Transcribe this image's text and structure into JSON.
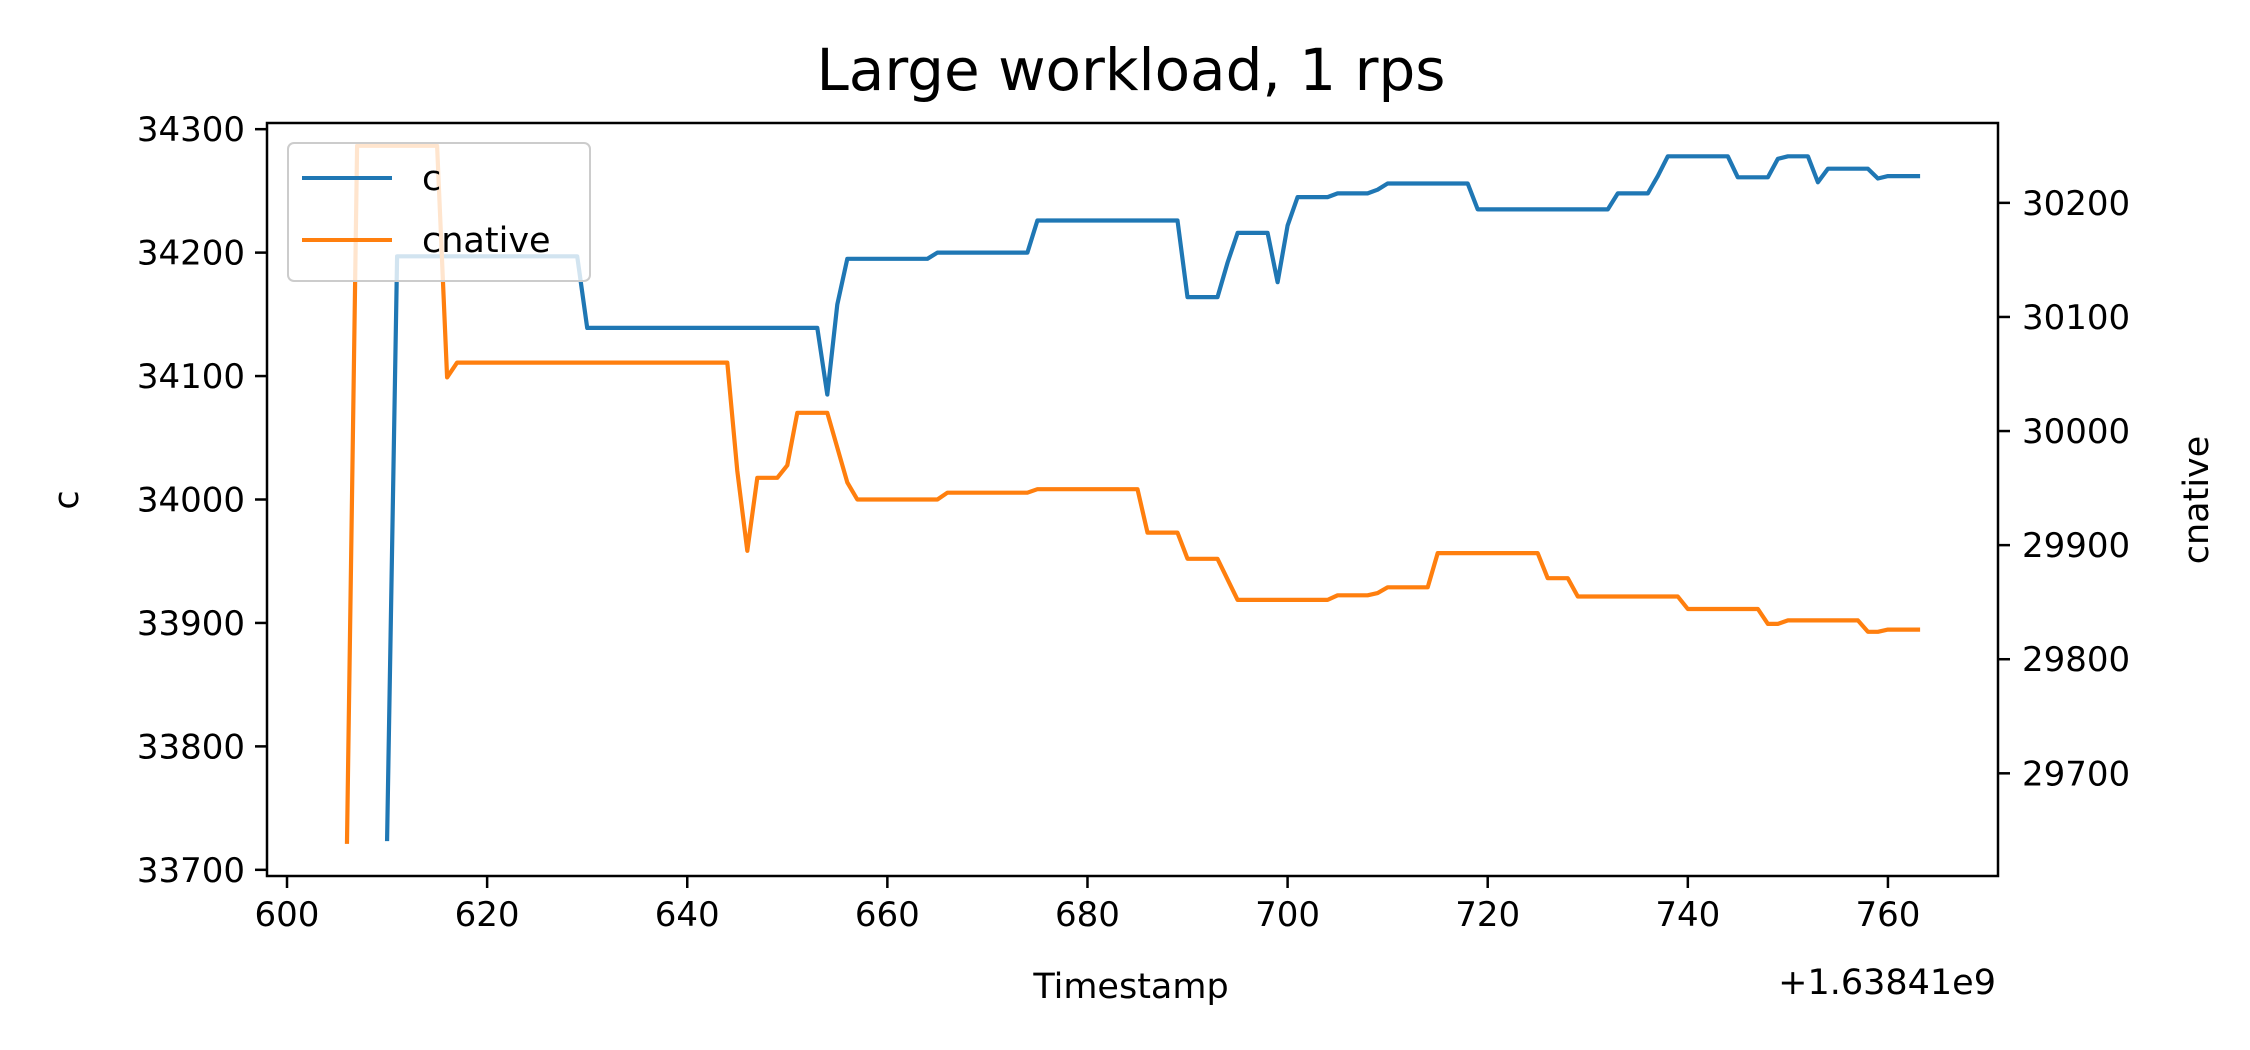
{
  "chart_data": {
    "type": "line",
    "title": "Large workload, 1 rps",
    "xlabel": "Timestamp",
    "x_offset_label": "+1.63841e9",
    "ylabel_left": "c",
    "ylabel_right": "cnative",
    "xlim": [
      598,
      771
    ],
    "ylim_left": [
      33695,
      34305
    ],
    "ylim_right": [
      29610,
      30270
    ],
    "xticks": [
      600,
      620,
      640,
      660,
      680,
      700,
      720,
      740,
      760
    ],
    "yticks_left": [
      33700,
      33800,
      33900,
      34000,
      34100,
      34200,
      34300
    ],
    "yticks_right": [
      29700,
      29800,
      29900,
      30000,
      30100,
      30200
    ],
    "legend": {
      "position": "upper-left"
    },
    "grid": false,
    "series": [
      {
        "name": "c",
        "axis": "left",
        "color": "#1f77b4",
        "points": [
          [
            610,
            33725
          ],
          [
            611,
            34197
          ],
          [
            629,
            34197
          ],
          [
            630,
            34139
          ],
          [
            653,
            34139
          ],
          [
            654,
            34085
          ],
          [
            655,
            34158
          ],
          [
            656,
            34195
          ],
          [
            664,
            34195
          ],
          [
            665,
            34200
          ],
          [
            674,
            34200
          ],
          [
            675,
            34226
          ],
          [
            689,
            34226
          ],
          [
            690,
            34164
          ],
          [
            693,
            34164
          ],
          [
            694,
            34192
          ],
          [
            695,
            34216
          ],
          [
            698,
            34216
          ],
          [
            699,
            34176
          ],
          [
            700,
            34222
          ],
          [
            701,
            34245
          ],
          [
            704,
            34245
          ],
          [
            705,
            34248
          ],
          [
            708,
            34248
          ],
          [
            709,
            34251
          ],
          [
            710,
            34256
          ],
          [
            718,
            34256
          ],
          [
            719,
            34235
          ],
          [
            732,
            34235
          ],
          [
            733,
            34248
          ],
          [
            736,
            34248
          ],
          [
            737,
            34262
          ],
          [
            738,
            34278
          ],
          [
            744,
            34278
          ],
          [
            745,
            34261
          ],
          [
            748,
            34261
          ],
          [
            749,
            34276
          ],
          [
            750,
            34278
          ],
          [
            752,
            34278
          ],
          [
            753,
            34257
          ],
          [
            754,
            34268
          ],
          [
            758,
            34268
          ],
          [
            759,
            34260
          ],
          [
            760,
            34262
          ],
          [
            763,
            34262
          ]
        ]
      },
      {
        "name": "cnative",
        "axis": "right",
        "color": "#ff7f0e",
        "points": [
          [
            606,
            29640
          ],
          [
            607,
            30250
          ],
          [
            615,
            30250
          ],
          [
            616,
            30047
          ],
          [
            617,
            30060
          ],
          [
            644,
            30060
          ],
          [
            645,
            29965
          ],
          [
            646,
            29895
          ],
          [
            647,
            29959
          ],
          [
            649,
            29959
          ],
          [
            650,
            29970
          ],
          [
            651,
            30016
          ],
          [
            654,
            30016
          ],
          [
            656,
            29955
          ],
          [
            657,
            29940
          ],
          [
            665,
            29940
          ],
          [
            666,
            29946
          ],
          [
            674,
            29946
          ],
          [
            675,
            29949
          ],
          [
            685,
            29949
          ],
          [
            686,
            29911
          ],
          [
            689,
            29911
          ],
          [
            690,
            29888
          ],
          [
            693,
            29888
          ],
          [
            695,
            29852
          ],
          [
            704,
            29852
          ],
          [
            705,
            29856
          ],
          [
            708,
            29856
          ],
          [
            709,
            29858
          ],
          [
            710,
            29863
          ],
          [
            714,
            29863
          ],
          [
            715,
            29893
          ],
          [
            725,
            29893
          ],
          [
            726,
            29871
          ],
          [
            728,
            29871
          ],
          [
            729,
            29855
          ],
          [
            739,
            29855
          ],
          [
            740,
            29844
          ],
          [
            747,
            29844
          ],
          [
            748,
            29831
          ],
          [
            749,
            29831
          ],
          [
            750,
            29834
          ],
          [
            757,
            29834
          ],
          [
            758,
            29824
          ],
          [
            759,
            29824
          ],
          [
            760,
            29826
          ],
          [
            763,
            29826
          ]
        ]
      }
    ]
  }
}
